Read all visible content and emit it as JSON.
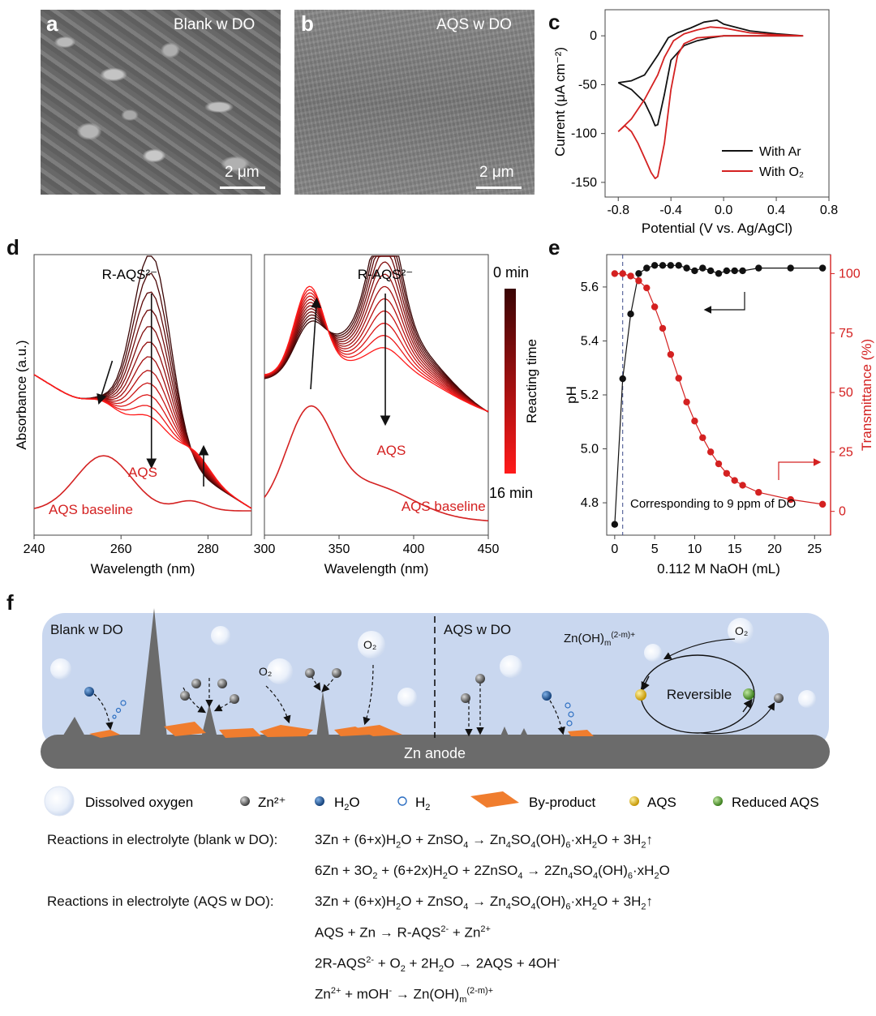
{
  "panels": {
    "a": {
      "label": "a",
      "title": "Blank w DO",
      "scale": "2 μm"
    },
    "b": {
      "label": "b",
      "title": "AQS w DO",
      "scale": "2 μm"
    },
    "c": {
      "label": "c"
    },
    "d": {
      "label": "d"
    },
    "e": {
      "label": "e"
    },
    "f": {
      "label": "f"
    }
  },
  "chart_data": [
    {
      "id": "c",
      "type": "line",
      "xlabel": "Potential (V vs. Ag/AgCl)",
      "ylabel": "Current (μA cm⁻²)",
      "xlim": [
        -0.9,
        0.8
      ],
      "ylim": [
        -165,
        30
      ],
      "xticks": [
        "-0.8",
        "-0.4",
        "0.0",
        "0.4",
        "0.8"
      ],
      "yticks": [
        "0",
        "-50",
        "-100",
        "-150"
      ],
      "legend_position": "bottom-right",
      "series": [
        {
          "name": "With Ar",
          "color": "#111111",
          "x": [
            -0.8,
            -0.7,
            -0.6,
            -0.55,
            -0.52,
            -0.5,
            -0.45,
            -0.4,
            -0.3,
            -0.2,
            -0.1,
            0.0,
            0.1,
            0.2,
            0.4,
            0.6,
            0.4,
            0.2,
            0.0,
            -0.05,
            -0.15,
            -0.25,
            -0.35,
            -0.42,
            -0.5,
            -0.6,
            -0.7,
            -0.8
          ],
          "y": [
            -48,
            -55,
            -68,
            -82,
            -92,
            -91,
            -60,
            -25,
            -10,
            -5,
            -2,
            0,
            0,
            0,
            0,
            0,
            2,
            5,
            12,
            16,
            14,
            8,
            3,
            -2,
            -20,
            -40,
            -46,
            -48
          ]
        },
        {
          "name": "With O₂",
          "color": "#d42121",
          "x": [
            -0.8,
            -0.75,
            -0.7,
            -0.65,
            -0.6,
            -0.55,
            -0.52,
            -0.5,
            -0.45,
            -0.4,
            -0.35,
            -0.3,
            -0.2,
            0.0,
            0.2,
            0.4,
            0.6,
            0.4,
            0.2,
            0.0,
            -0.1,
            -0.2,
            -0.3,
            -0.38,
            -0.45,
            -0.5,
            -0.6,
            -0.7,
            -0.8
          ],
          "y": [
            -98,
            -92,
            -98,
            -110,
            -125,
            -140,
            -146,
            -144,
            -110,
            -55,
            -20,
            -8,
            -2,
            0,
            0,
            0,
            0,
            1,
            3,
            8,
            9,
            6,
            2,
            -5,
            -22,
            -40,
            -65,
            -85,
            -98
          ]
        }
      ],
      "legend": [
        "With Ar",
        "With O₂"
      ]
    },
    {
      "id": "d-left",
      "type": "line",
      "xlabel": "Wavelength (nm)",
      "ylabel": "Absorbance (a.u.)",
      "xlim": [
        240,
        290
      ],
      "xticks": [
        "240",
        "260",
        "280"
      ],
      "annotations": [
        "R-AQS²⁻",
        "AQS",
        "AQS baseline"
      ],
      "series_count": 12,
      "peak_nm": 267
    },
    {
      "id": "d-right",
      "type": "line",
      "xlabel": "Wavelength (nm)",
      "xlim": [
        300,
        450
      ],
      "xticks": [
        "300",
        "350",
        "400",
        "450"
      ],
      "annotations": [
        "R-AQS²⁻",
        "AQS",
        "AQS baseline"
      ],
      "series_count": 12,
      "peak_nm": 381
    },
    {
      "id": "d-colorbar",
      "type": "heatmap",
      "label": "Reacting time",
      "top": "0 min",
      "bottom": "16 min",
      "colors": [
        "#3a0505",
        "#ff1a1a"
      ]
    },
    {
      "id": "e",
      "type": "scatter",
      "xlabel": "0.112 M NaOH (mL)",
      "ylabel": "pH",
      "y2label": "Transmittance (%)",
      "xlim": [
        -1,
        27
      ],
      "ylim": [
        4.68,
        5.72
      ],
      "y2lim": [
        -10,
        108
      ],
      "xticks": [
        "0",
        "5",
        "10",
        "15",
        "20",
        "25"
      ],
      "yticks": [
        "4.8",
        "5.0",
        "5.2",
        "5.4",
        "5.6"
      ],
      "y2ticks": [
        "0",
        "25",
        "50",
        "75",
        "100"
      ],
      "annotation": "Corresponding to 9 ppm of DO",
      "vline_x": 1,
      "series": [
        {
          "name": "pH",
          "color": "#111111",
          "axis": "left",
          "x": [
            0,
            1,
            2,
            3,
            4,
            5,
            6,
            7,
            8,
            9,
            10,
            11,
            12,
            13,
            14,
            15,
            16,
            18,
            22,
            26
          ],
          "y": [
            4.72,
            5.26,
            5.5,
            5.65,
            5.67,
            5.68,
            5.68,
            5.68,
            5.68,
            5.67,
            5.66,
            5.67,
            5.66,
            5.65,
            5.66,
            5.66,
            5.66,
            5.67,
            5.67,
            5.67
          ]
        },
        {
          "name": "Transmittance",
          "color": "#d42121",
          "axis": "right",
          "x": [
            0,
            1,
            2,
            3,
            4,
            5,
            6,
            7,
            8,
            9,
            10,
            11,
            12,
            13,
            14,
            15,
            16,
            18,
            22,
            26
          ],
          "y": [
            100,
            100,
            99,
            97,
            94,
            86,
            77,
            66,
            56,
            46,
            38,
            31,
            25,
            20,
            16,
            13,
            11,
            8,
            5,
            3
          ]
        }
      ]
    }
  ],
  "schematic": {
    "left_title": "Blank w DO",
    "right_title": "AQS w DO",
    "anode_label": "Zn anode",
    "o2_label": "O₂",
    "zn_oh_label": "Zn(OH)m(2-m)+",
    "reversible_label": "Reversible",
    "legend": {
      "dissolved_oxygen": "Dissolved oxygen",
      "zn": "Zn²⁺",
      "h2o": "H₂O",
      "h2": "H₂",
      "byproduct": "By-product",
      "aqs": "AQS",
      "reduced_aqs": "Reduced AQS"
    },
    "colors": {
      "electrolyte": "#c9d7ef",
      "anode": "#6b6b6b",
      "byproduct": "#f07d2e",
      "aqs": "#e5b800",
      "reduced_aqs": "#58a832",
      "water": "#1f5e9e"
    }
  },
  "reactions": {
    "blank_label": "Reactions in electrolyte (blank w DO):",
    "aqs_label": "Reactions in electrolyte (AQS w DO):"
  }
}
